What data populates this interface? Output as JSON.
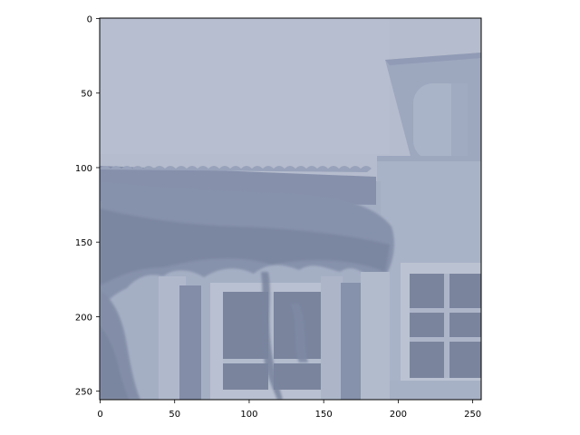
{
  "image": {
    "description_free": true,
    "extent": {
      "x": [
        0,
        256
      ],
      "y": [
        256,
        0
      ]
    }
  },
  "axes": {
    "x_ticks": [
      0,
      50,
      100,
      150,
      200,
      250
    ],
    "y_ticks": [
      0,
      50,
      100,
      150,
      200,
      250
    ]
  },
  "colors": {
    "sky": "#b7bfcf",
    "sky_light": "#bfc6d4",
    "wall": "#a3aec4",
    "wall_light": "#adb8cc",
    "roof": "#7f8aa6",
    "foliage_dark": "#6f7b96",
    "foliage": "#8491ab",
    "window_frame": "#c2c9d6",
    "window_glass": "#6e7a94",
    "axis": "#000000"
  }
}
